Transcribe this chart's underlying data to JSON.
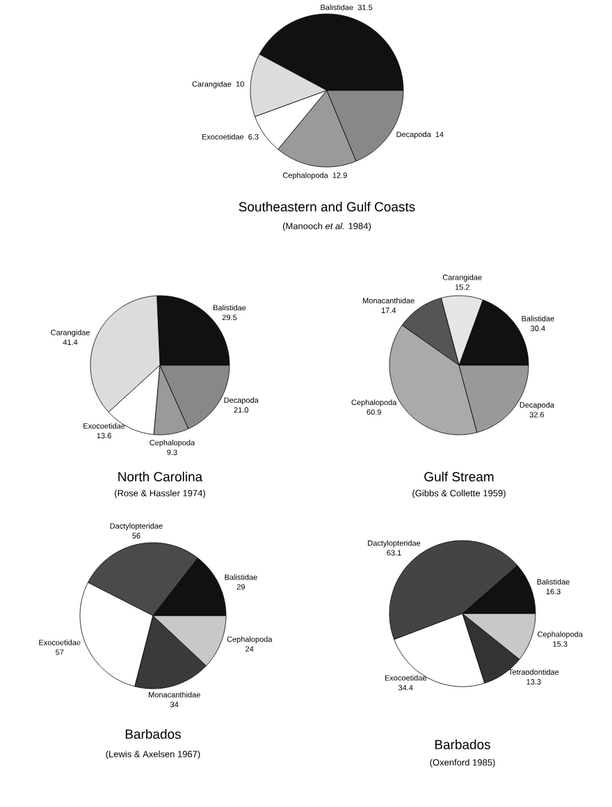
{
  "chart_data": [
    {
      "type": "pie",
      "title": "Southeastern and Gulf Coasts",
      "subtitle": "(Manooch *et al.* 1984)",
      "categories": [
        "Balistidae",
        "Carangidae",
        "Exocoetidae",
        "Cephalopoda",
        "Decapoda"
      ],
      "values": [
        31.5,
        10,
        6.3,
        12.9,
        14
      ],
      "value_labels": [
        "31.5",
        "10",
        "6.3",
        "12.9",
        "14"
      ],
      "colors": [
        "#111111",
        "#dcdcdc",
        "#ffffff",
        "#9a9a9a",
        "#888888"
      ]
    },
    {
      "type": "pie",
      "title": "North Carolina",
      "subtitle": "(Rose & Hassler 1974)",
      "categories": [
        "Balistidae",
        "Carangidae",
        "Exocoetidae",
        "Cephalopoda",
        "Decapoda"
      ],
      "values": [
        29.5,
        41.4,
        13.6,
        9.3,
        21.0
      ],
      "value_labels": [
        "29.5",
        "41.4",
        "13.6",
        "9.3",
        "21.0"
      ],
      "colors": [
        "#111111",
        "#dcdcdc",
        "#ffffff",
        "#9a9a9a",
        "#888888"
      ]
    },
    {
      "type": "pie",
      "title": "Gulf Stream",
      "subtitle": "(Gibbs & Collette 1959)",
      "categories": [
        "Balistidae",
        "Carangidae",
        "Monacanthidae",
        "Cephalopoda",
        "Decapoda"
      ],
      "values": [
        30.4,
        15.2,
        17.4,
        60.9,
        32.6
      ],
      "value_labels": [
        "30.4",
        "15.2",
        "17.4",
        "60.9",
        "32.6"
      ],
      "colors": [
        "#111111",
        "#e6e6e6",
        "#555555",
        "#aaaaaa",
        "#999999"
      ]
    },
    {
      "type": "pie",
      "title": "Barbados",
      "subtitle": "(Lewis & Axelsen 1967)",
      "categories": [
        "Balistidae",
        "Dactylopteridae",
        "Exocoetidae",
        "Monacanthidae",
        "Cephalopoda"
      ],
      "values": [
        29,
        56,
        57,
        34,
        24
      ],
      "value_labels": [
        "29",
        "56",
        "57",
        "34",
        "24"
      ],
      "colors": [
        "#111111",
        "#4a4a4a",
        "#ffffff",
        "#3a3a3a",
        "#c8c8c8"
      ]
    },
    {
      "type": "pie",
      "title": "Barbados",
      "subtitle": "(Oxenford 1985)",
      "categories": [
        "Balistidae",
        "Dactylopteridae",
        "Exocoetidae",
        "Tetraodontidae",
        "Cephalopoda"
      ],
      "values": [
        16.3,
        63.1,
        34.4,
        13.3,
        15.3
      ],
      "value_labels": [
        "16.3",
        "63.1",
        "34.4",
        "13.3",
        "15.3"
      ],
      "colors": [
        "#111111",
        "#444444",
        "#ffffff",
        "#333333",
        "#c8c8c8"
      ]
    }
  ]
}
